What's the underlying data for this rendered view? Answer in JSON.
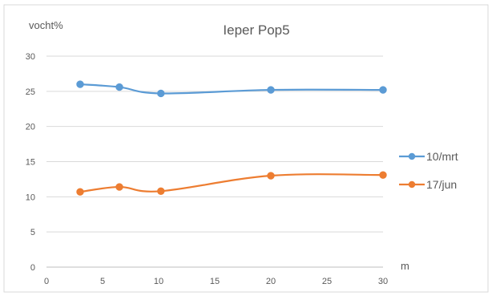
{
  "chart_data": {
    "type": "line",
    "title": "Ieper Pop5",
    "ylabel": "vocht%",
    "xlabel": "m",
    "xlim": [
      0,
      30
    ],
    "ylim": [
      0,
      30
    ],
    "x_ticks": [
      0,
      5,
      10,
      15,
      20,
      25,
      30
    ],
    "y_ticks": [
      0,
      5,
      10,
      15,
      20,
      25,
      30
    ],
    "grid": "horizontal",
    "legend": "right",
    "series": [
      {
        "name": "10/mrt",
        "color": "#5b9bd5",
        "x": [
          3,
          6.5,
          10.2,
          20,
          30
        ],
        "y": [
          26,
          25.6,
          24.7,
          25.2,
          25.2
        ]
      },
      {
        "name": "17/jun",
        "color": "#ed7d31",
        "x": [
          3,
          6.5,
          10.2,
          20,
          30
        ],
        "y": [
          10.7,
          11.4,
          10.8,
          13.0,
          13.1
        ]
      }
    ]
  }
}
